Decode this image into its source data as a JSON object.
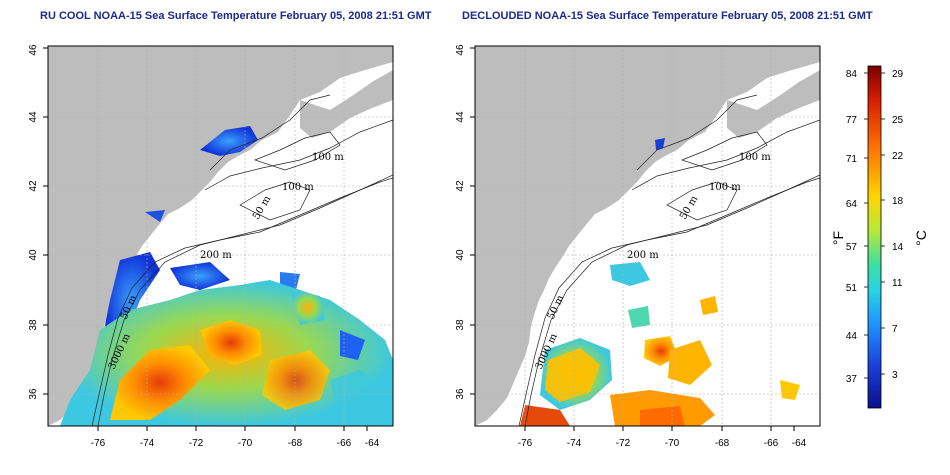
{
  "panels": [
    {
      "title": "RU COOL NOAA-15 Sea Surface Temperature February 05, 2008 21:51 GMT",
      "contour_labels": [
        "100 m",
        "100 m",
        "50 m",
        "200 m",
        "50 m",
        "3000 m"
      ]
    },
    {
      "title": "DECLOUDED NOAA-15 Sea Surface Temperature February 05, 2008 21:51 GMT",
      "contour_labels": [
        "100 m",
        "100 m",
        "50 m",
        "200 m",
        "50 m",
        "3000 m"
      ]
    }
  ],
  "axes": {
    "lon_ticks": [
      "-76",
      "-74",
      "-72",
      "-70",
      "-68",
      "-66",
      "-64"
    ],
    "lat_ticks": [
      "36",
      "38",
      "40",
      "42",
      "44",
      "46"
    ]
  },
  "colorbar": {
    "left_unit": "°F",
    "right_unit": "°C",
    "f_ticks": [
      "84",
      "77",
      "71",
      "64",
      "57",
      "51",
      "44",
      "37"
    ],
    "c_ticks": [
      "29",
      "25",
      "22",
      "18",
      "14",
      "11",
      "7",
      "3"
    ]
  },
  "colors": {
    "land": "#bdbdbd",
    "ocean": "#ffffff",
    "title": "#1c2a8c",
    "colorbar_stops": [
      "#7a0000",
      "#d81e00",
      "#ff7a00",
      "#ffd400",
      "#b8e838",
      "#3ee0a0",
      "#28d0e6",
      "#1e90ff",
      "#1a3fd6",
      "#0a0f8c"
    ]
  }
}
